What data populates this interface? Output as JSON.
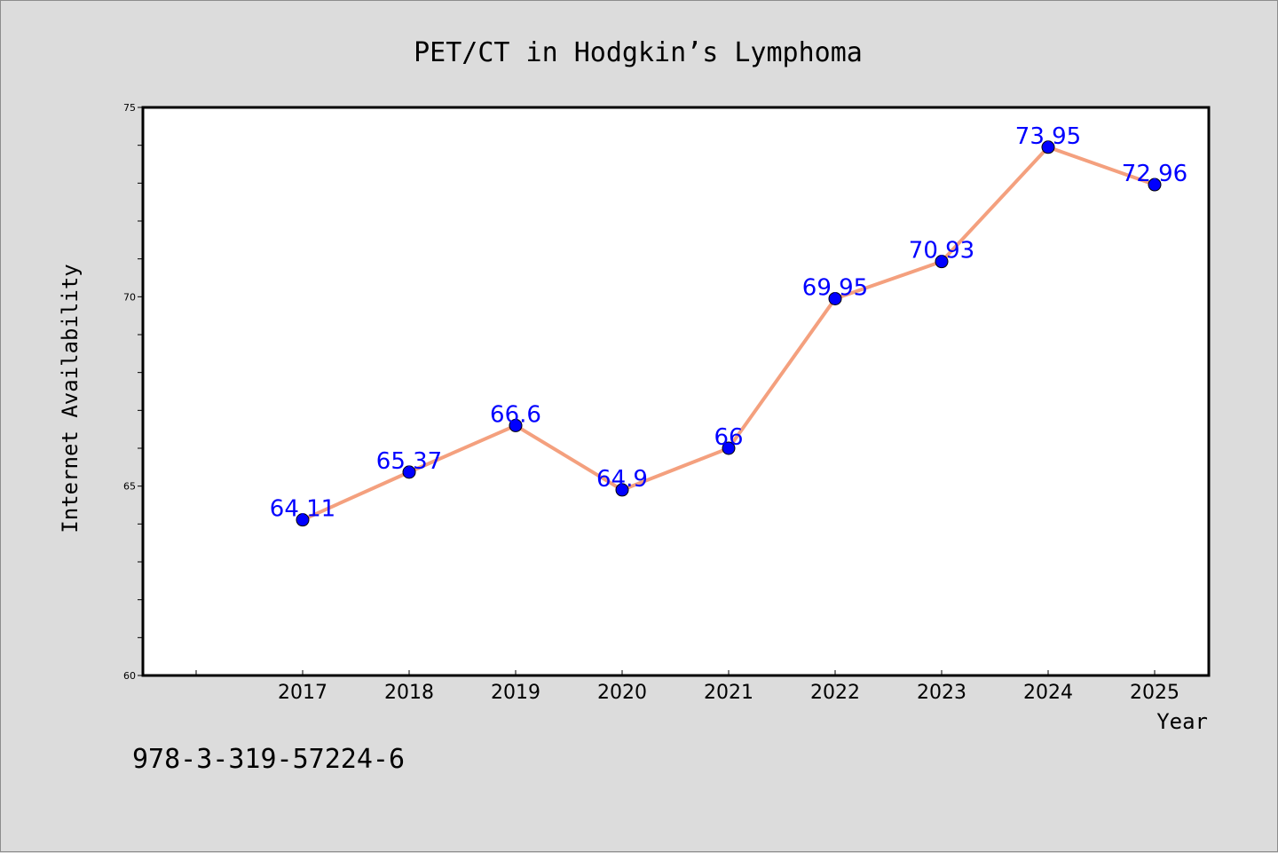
{
  "chart_data": {
    "type": "line",
    "title": "PET/CT in Hodgkin’s Lymphoma",
    "xlabel": "Year",
    "ylabel": "Internet Availability",
    "categories": [
      "2017",
      "2018",
      "2019",
      "2020",
      "2021",
      "2022",
      "2023",
      "2024",
      "2025"
    ],
    "values": [
      64.11,
      65.37,
      66.6,
      64.9,
      66,
      69.95,
      70.93,
      73.95,
      72.96
    ],
    "data_labels": [
      "64.11",
      "65.37",
      "66.6",
      "64.9",
      "66",
      "69.95",
      "70.93",
      "73.95",
      "72.96"
    ],
    "ylim": [
      60,
      75
    ],
    "yticks": [
      "60",
      "65",
      "70",
      "75"
    ],
    "grid": false,
    "line_color": "#f4a07e",
    "marker_color": "#0000ff",
    "label_color": "#0000ff",
    "plot_background": "#ffffff",
    "page_background": "#dcdcdc"
  },
  "footer": {
    "text": "978-3-319-57224-6"
  }
}
